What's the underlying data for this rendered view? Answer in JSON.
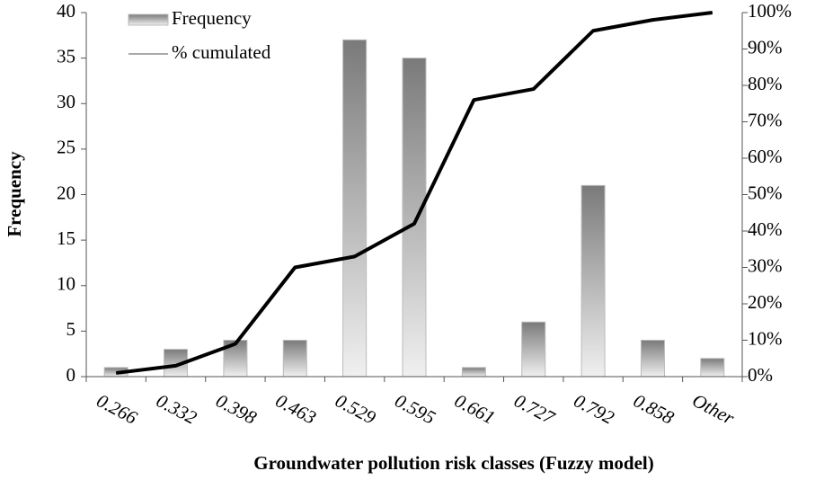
{
  "chart_data": {
    "type": "bar-line",
    "xlabel": "Groundwater pollution risk classes (Fuzzy model)",
    "ylabel": "Frequency",
    "categories": [
      "0.266",
      "0.332",
      "0.398",
      "0.463",
      "0.529",
      "0.595",
      "0.661",
      "0.727",
      "0.792",
      "0.858",
      "Other"
    ],
    "series": [
      {
        "name": "Frequency",
        "type": "bar",
        "color": "#8c8c8c",
        "values": [
          1,
          3,
          4,
          4,
          37,
          35,
          1,
          6,
          21,
          4,
          2
        ]
      },
      {
        "name": "% cumulated",
        "type": "line",
        "axis": "y2",
        "color": "#000000",
        "values": [
          1,
          3,
          9,
          30,
          33,
          42,
          76,
          79,
          95,
          98,
          100
        ]
      }
    ],
    "ylim": [
      0,
      40
    ],
    "yticks": [
      0,
      5,
      10,
      15,
      20,
      25,
      30,
      35,
      40
    ],
    "y2lim": [
      0,
      100
    ],
    "y2ticks": [
      {
        "value": 0,
        "label": "0%"
      },
      {
        "value": 10,
        "label": "10%"
      },
      {
        "value": 20,
        "label": "20%"
      },
      {
        "value": 30,
        "label": "30%"
      },
      {
        "value": 40,
        "label": "40%"
      },
      {
        "value": 50,
        "label": "50%"
      },
      {
        "value": 60,
        "label": "60%"
      },
      {
        "value": 70,
        "label": "70%"
      },
      {
        "value": 80,
        "label": "80%"
      },
      {
        "value": 90,
        "label": "90%"
      },
      {
        "value": 100,
        "label": "100%"
      }
    ],
    "legend": "top-left",
    "grid": false
  }
}
